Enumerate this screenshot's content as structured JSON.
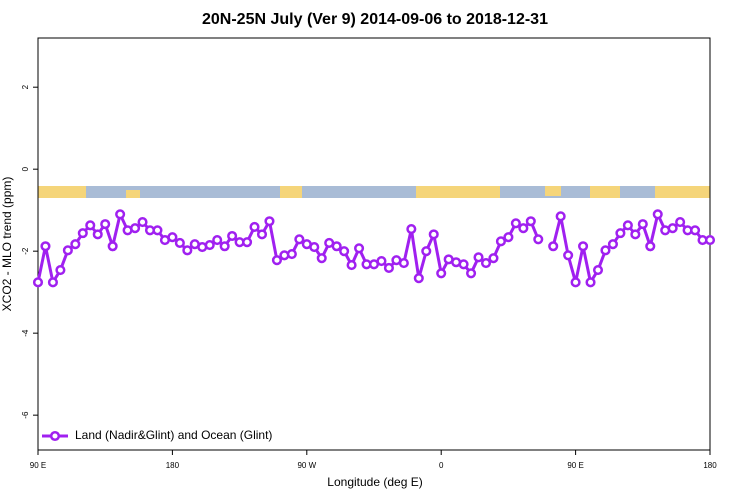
{
  "chart_data": {
    "type": "line",
    "title": "20N-25N July (Ver 9)   2014-09-06 to 2018-12-31",
    "x_label": "Longitude (deg E)",
    "y_label": "XCO2 - MLO trend (ppm)",
    "x": [
      90,
      95,
      100,
      105,
      110,
      115,
      120,
      125,
      130,
      135,
      140,
      145,
      150,
      155,
      160,
      165,
      170,
      175,
      180,
      185,
      190,
      195,
      200,
      205,
      210,
      215,
      220,
      225,
      230,
      235,
      240,
      245,
      250,
      255,
      260,
      265,
      270,
      275,
      280,
      285,
      290,
      295,
      300,
      305,
      310,
      315,
      320,
      325,
      330,
      335,
      340,
      345,
      350,
      355,
      360,
      365,
      370,
      375,
      380,
      385,
      390,
      395,
      400,
      405,
      410,
      415,
      420,
      425,
      430,
      435,
      440,
      445,
      450,
      455,
      460,
      465,
      470,
      475,
      480,
      485,
      490,
      495,
      500,
      505,
      510,
      515,
      520,
      525,
      530,
      535,
      540
    ],
    "series": [
      {
        "name": "Land (Nadir&Glint) and Ocean (Glint)",
        "color": "#a020f0",
        "values": [
          -2.76,
          -1.88,
          -2.76,
          -2.46,
          -1.98,
          -1.83,
          -1.56,
          -1.37,
          -1.59,
          -1.34,
          -1.88,
          -1.1,
          -1.49,
          -1.44,
          -1.29,
          -1.49,
          -1.49,
          -1.73,
          -1.66,
          -1.8,
          -1.98,
          -1.83,
          -1.9,
          -1.85,
          -1.73,
          -1.88,
          -1.63,
          -1.78,
          -1.78,
          -1.41,
          -1.59,
          -1.27,
          -2.22,
          -2.1,
          -2.07,
          -1.71,
          -1.83,
          -1.9,
          -2.17,
          -1.8,
          -1.88,
          -2.0,
          -2.34,
          -1.93,
          -2.32,
          -2.32,
          -2.24,
          -2.41,
          -2.22,
          -2.29,
          -1.46,
          -2.66,
          -2.0,
          -1.59,
          -2.54,
          -2.2,
          -2.27,
          -2.32,
          -2.54,
          -2.15,
          -2.29,
          -2.17,
          -1.76,
          -1.66,
          -1.32,
          -1.44,
          -1.27,
          -1.71,
          null,
          -1.88,
          -1.15,
          -2.1,
          -2.76,
          -1.88,
          -2.76,
          -2.46,
          -1.98,
          -1.83,
          -1.56,
          -1.37,
          -1.59,
          -1.34,
          -1.88,
          -1.1,
          -1.49,
          -1.44,
          -1.29,
          -1.49,
          -1.49,
          -1.73,
          -1.73
        ]
      }
    ],
    "xlim": [
      90,
      540
    ],
    "xticks": [
      {
        "value": 90,
        "label": "90 E"
      },
      180,
      {
        "value": 270,
        "label": "90 W"
      },
      {
        "value": 360,
        "label": "0"
      },
      {
        "value": 450,
        "label": "90 E"
      },
      {
        "value": 540,
        "label": "180"
      }
    ],
    "ylim": [
      -6.85,
      3.2
    ],
    "yticks": [
      -6,
      -4,
      -2,
      0,
      2
    ],
    "legend": "bottom-left"
  }
}
